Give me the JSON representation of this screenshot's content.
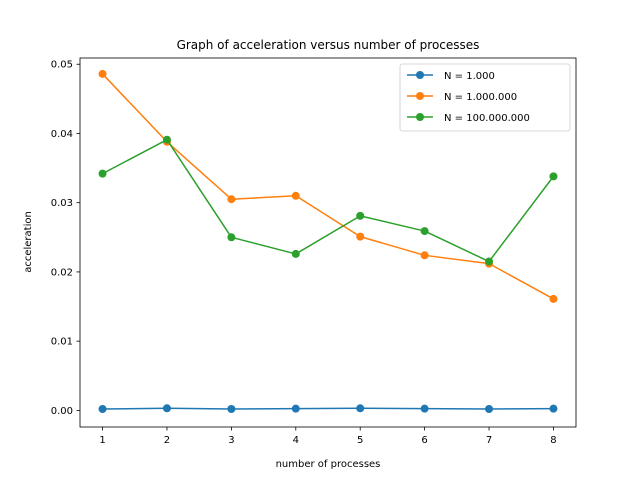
{
  "chart_data": {
    "type": "line",
    "title": "Graph of acceleration versus number of processes",
    "xlabel": "number of processes",
    "ylabel": "acceleration",
    "x": [
      1,
      2,
      3,
      4,
      5,
      6,
      7,
      8
    ],
    "xlim": [
      0.65,
      8.35
    ],
    "ylim": [
      -0.0024,
      0.0509
    ],
    "xticks": [
      1,
      2,
      3,
      4,
      5,
      6,
      7,
      8
    ],
    "yticks": [
      0.0,
      0.01,
      0.02,
      0.03,
      0.04,
      0.05
    ],
    "ytick_labels": [
      "0.00",
      "0.01",
      "0.02",
      "0.03",
      "0.04",
      "0.05"
    ],
    "grid": false,
    "legend_position": "top-right",
    "series": [
      {
        "name": "N = 1.000",
        "color": "#1f77b4",
        "marker": "circle",
        "values": [
          0.0002,
          0.0003,
          0.0002,
          0.00025,
          0.0003,
          0.00025,
          0.0002,
          0.00025
        ]
      },
      {
        "name": "N = 1.000.000",
        "color": "#ff7f0e",
        "marker": "circle",
        "values": [
          0.0486,
          0.0388,
          0.0305,
          0.031,
          0.0251,
          0.0224,
          0.0212,
          0.0161
        ]
      },
      {
        "name": "N = 100.000.000",
        "color": "#2ca02c",
        "marker": "circle",
        "values": [
          0.0342,
          0.0391,
          0.025,
          0.0226,
          0.0281,
          0.0259,
          0.0215,
          0.0338
        ]
      }
    ]
  }
}
